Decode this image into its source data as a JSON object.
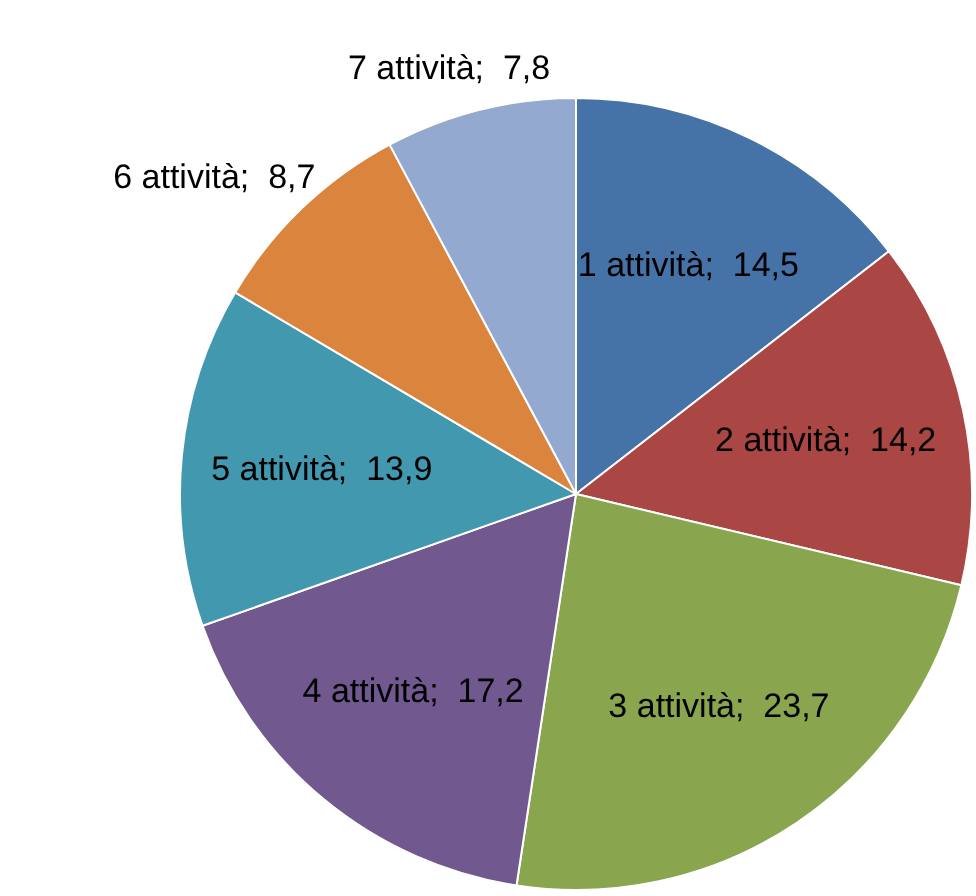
{
  "chart_data": {
    "type": "pie",
    "categories": [
      "1 attività",
      "2 attività",
      "3 attività",
      "4 attività",
      "5 attività",
      "6 attività",
      "7 attività"
    ],
    "values": [
      14.5,
      14.2,
      23.7,
      17.2,
      13.9,
      8.7,
      7.8
    ],
    "value_labels": [
      "14,5",
      "14,2",
      "23,7",
      "17,2",
      "13,9",
      "8,7",
      "7,8"
    ],
    "colors": [
      "#4572a7",
      "#aa4643",
      "#89a54e",
      "#71588f",
      "#4198af",
      "#db843d",
      "#93a9cf"
    ],
    "legend": false
  }
}
